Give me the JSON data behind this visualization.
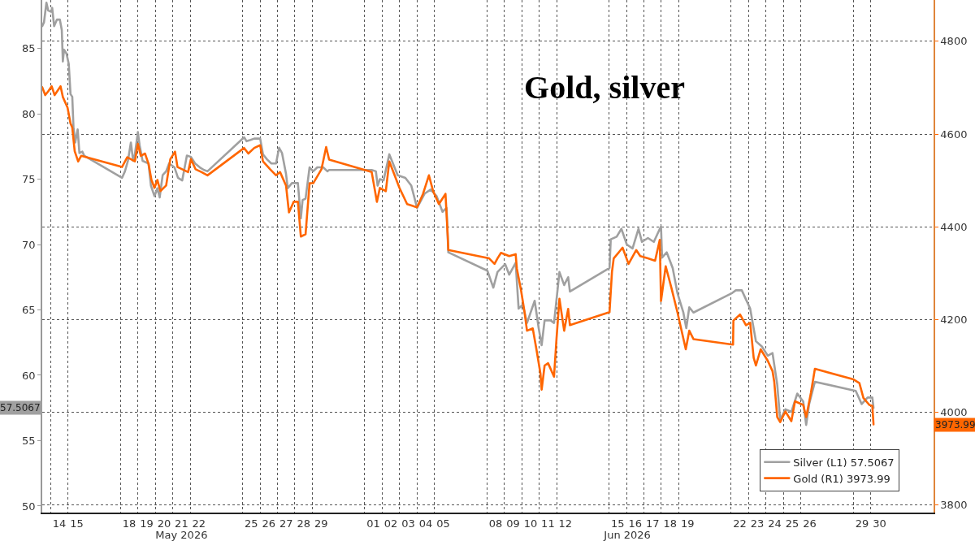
{
  "chart_data": {
    "type": "line",
    "title": "Gold, silver",
    "xlim": [
      "2026-05-13T12:29",
      "2026-07-03T14:24"
    ],
    "xticks": [
      {
        "value": "2026-05-14T12:00",
        "label": "14"
      },
      {
        "value": "2026-05-15T12:00",
        "label": "15"
      },
      {
        "value": "2026-05-18T12:00",
        "label": "18"
      },
      {
        "value": "2026-05-19T12:00",
        "label": "19"
      },
      {
        "value": "2026-05-20T12:00",
        "label": "20"
      },
      {
        "value": "2026-05-21T12:00",
        "label": "21"
      },
      {
        "value": "2026-05-22T12:00",
        "label": "22"
      },
      {
        "value": "2026-05-25T12:00",
        "label": "25"
      },
      {
        "value": "2026-05-26T12:00",
        "label": "26"
      },
      {
        "value": "2026-05-27T12:00",
        "label": "27"
      },
      {
        "value": "2026-05-28T12:00",
        "label": "28"
      },
      {
        "value": "2026-05-29T12:00",
        "label": "29"
      },
      {
        "value": "2026-06-01T12:00",
        "label": "01"
      },
      {
        "value": "2026-06-02T12:00",
        "label": "02"
      },
      {
        "value": "2026-06-03T12:00",
        "label": "03"
      },
      {
        "value": "2026-06-04T12:00",
        "label": "04"
      },
      {
        "value": "2026-06-05T12:00",
        "label": "05"
      },
      {
        "value": "2026-06-08T12:00",
        "label": "08"
      },
      {
        "value": "2026-06-09T12:00",
        "label": "09"
      },
      {
        "value": "2026-06-10T12:00",
        "label": "10"
      },
      {
        "value": "2026-06-11T12:00",
        "label": "11"
      },
      {
        "value": "2026-06-12T12:00",
        "label": "12"
      },
      {
        "value": "2026-06-15T12:00",
        "label": "15"
      },
      {
        "value": "2026-06-16T12:00",
        "label": "16"
      },
      {
        "value": "2026-06-17T12:00",
        "label": "17"
      },
      {
        "value": "2026-06-18T12:00",
        "label": "18"
      },
      {
        "value": "2026-06-19T12:00",
        "label": "19"
      },
      {
        "value": "2026-06-22T12:00",
        "label": "22"
      },
      {
        "value": "2026-06-23T12:00",
        "label": "23"
      },
      {
        "value": "2026-06-24T12:00",
        "label": "24"
      },
      {
        "value": "2026-06-25T12:00",
        "label": "25"
      },
      {
        "value": "2026-06-26T12:00",
        "label": "26"
      },
      {
        "value": "2026-06-29T12:00",
        "label": "29"
      },
      {
        "value": "2026-06-30T12:00",
        "label": "30"
      }
    ],
    "x2lim": [
      "2026-05-13T12:29",
      "2026-07-03T14:24"
    ],
    "x2ticks": [
      {
        "value": "2026-05-21T12:00",
        "label": "May 2026"
      },
      {
        "value": "2026-06-16T01:12",
        "label": "Jun 2026"
      }
    ],
    "ylim": [
      49.5,
      88.7
    ],
    "yticks": [
      50,
      55,
      60,
      65,
      70,
      75,
      80,
      85
    ],
    "y2lim": [
      3784,
      4889
    ],
    "y2ticks": [
      3800,
      4000,
      4200,
      4400,
      4600,
      4800
    ],
    "grid": true,
    "legend": "bottom right",
    "line_style": "solid",
    "annotations": [
      "57.5067",
      "3973.99"
    ],
    "series": [
      {
        "name": "Silver (L1) 57.5067",
        "color": "#a0a0a0",
        "axis": "y",
        "x": [
          "2026-05-13T12:29",
          "2026-05-13T14:53",
          "2026-05-13T18:14",
          "2026-05-13T20:38",
          "2026-05-14T00:43",
          "2026-05-14T02:10",
          "2026-05-14T04:48",
          "2026-05-14T08:38",
          "2026-05-14T12:43",
          "2026-05-14T15:22",
          "2026-05-14T16:48",
          "2026-05-14T18:29",
          "2026-05-14T21:50",
          "2026-05-15T00:58",
          "2026-05-15T03:22",
          "2026-05-15T05:46",
          "2026-05-15T07:26",
          "2026-05-15T09:50",
          "2026-05-15T13:12",
          "2026-05-15T15:36",
          "2026-05-15T19:41",
          "2026-05-15T22:05",
          "2026-05-18T02:10",
          "2026-05-18T06:14",
          "2026-05-18T10:19",
          "2026-05-18T14:24",
          "2026-05-18T17:31",
          "2026-05-18T19:55",
          "2026-05-19T00:00",
          "2026-05-19T02:24",
          "2026-05-19T06:29",
          "2026-05-19T14:38",
          "2026-05-19T18:00",
          "2026-05-19T22:48",
          "2026-05-20T02:53",
          "2026-05-20T06:00",
          "2026-05-20T10:05",
          "2026-05-20T14:53",
          "2026-05-20T18:58",
          "2026-05-21T02:24",
          "2026-05-21T07:12",
          "2026-05-21T12:58",
          "2026-05-21T19:26",
          "2026-05-22T00:58",
          "2026-05-22T06:43",
          "2026-05-22T13:12",
          "2026-05-22T18:58",
          "2026-05-22T23:46",
          "2026-05-25T02:10",
          "2026-05-25T05:31",
          "2026-05-25T11:02",
          "2026-05-25T16:05",
          "2026-05-26T00:14",
          "2026-05-26T04:05",
          "2026-05-26T09:50",
          "2026-05-26T15:36",
          "2026-05-26T22:05",
          "2026-05-27T02:10",
          "2026-05-27T06:14",
          "2026-05-27T11:46",
          "2026-05-27T14:10",
          "2026-05-27T19:55",
          "2026-05-28T04:05",
          "2026-05-28T08:10",
          "2026-05-28T10:34",
          "2026-05-28T14:38",
          "2026-05-28T20:10",
          "2026-05-29T01:12",
          "2026-05-29T06:43",
          "2026-05-29T14:53",
          "2026-05-29T20:38",
          "2026-05-29T23:02",
          "2026-06-01T09:36",
          "2026-06-01T15:22",
          "2026-06-01T17:46",
          "2026-06-01T20:53",
          "2026-06-02T01:55",
          "2026-06-02T09:50",
          "2026-06-02T21:22",
          "2026-06-03T07:55",
          "2026-06-03T16:05",
          "2026-06-04T00:00",
          "2026-06-04T10:34",
          "2026-06-04T18:43",
          "2026-06-05T02:53",
          "2026-06-05T11:02",
          "2026-06-05T16:34",
          "2026-06-05T18:58",
          "2026-06-08T00:43",
          "2026-06-08T08:53",
          "2026-06-08T14:38",
          "2026-06-09T01:12",
          "2026-06-09T06:43",
          "2026-06-09T15:36",
          "2026-06-09T19:41",
          "2026-06-10T01:26",
          "2026-06-10T07:12",
          "2026-06-10T17:46",
          "2026-06-10T23:17",
          "2026-06-11T03:22",
          "2026-06-11T07:26",
          "2026-06-11T15:36",
          "2026-06-11T20:24",
          "2026-06-12T03:50",
          "2026-06-12T10:19",
          "2026-06-12T15:50",
          "2026-06-12T18:14",
          "2026-06-15T00:43",
          "2026-06-15T02:24",
          "2026-06-15T10:34",
          "2026-06-15T17:02",
          "2026-06-16T00:29",
          "2026-06-16T08:24",
          "2026-06-16T16:34",
          "2026-06-16T21:22",
          "2026-06-17T05:31",
          "2026-06-17T13:41",
          "2026-06-17T23:31",
          "2026-06-18T00:58",
          "2026-06-18T07:26",
          "2026-06-18T15:36",
          "2026-06-18T22:05",
          "2026-06-19T06:14",
          "2026-06-19T10:19",
          "2026-06-19T14:24",
          "2026-06-19T20:10",
          "2026-06-22T01:41",
          "2026-06-22T06:29",
          "2026-06-22T14:38",
          "2026-06-23T02:10",
          "2026-06-23T10:05",
          "2026-06-23T18:14",
          "2026-06-24T02:24",
          "2026-06-24T08:53",
          "2026-06-24T15:22",
          "2026-06-24T19:26",
          "2026-06-25T02:38",
          "2026-06-25T10:48",
          "2026-06-25T18:58",
          "2026-06-26T03:07",
          "2026-06-26T07:12",
          "2026-06-26T11:17",
          "2026-06-26T19:12",
          "2026-06-29T03:22",
          "2026-06-29T11:31",
          "2026-06-29T19:41",
          "2026-06-30T02:10",
          "2026-06-30T03:50"
        ],
        "values": [
          86.7,
          87.0,
          88.5,
          87.9,
          87.8,
          88.1,
          86.7,
          87.2,
          87.2,
          86.4,
          84.0,
          84.9,
          84.6,
          83.8,
          81.5,
          81.3,
          79.0,
          77.8,
          78.8,
          77.0,
          77.1,
          76.8,
          75.1,
          75.6,
          76.4,
          77.8,
          76.4,
          76.9,
          78.6,
          77.6,
          76.4,
          76.2,
          74.5,
          73.7,
          74.3,
          73.6,
          75.3,
          75.6,
          76.2,
          75.9,
          75.1,
          74.9,
          76.8,
          76.7,
          76.2,
          75.9,
          75.7,
          75.6,
          78.2,
          77.9,
          78.0,
          78.1,
          78.1,
          76.9,
          76.5,
          76.2,
          76.2,
          77.4,
          77.0,
          75.4,
          74.3,
          74.7,
          74.7,
          72.0,
          73.4,
          73.5,
          75.9,
          75.6,
          75.9,
          75.9,
          75.6,
          75.7,
          75.7,
          75.6,
          74.5,
          75.0,
          74.9,
          76.9,
          75.3,
          75.1,
          74.5,
          72.8,
          73.9,
          74.2,
          73.7,
          72.5,
          72.8,
          69.4,
          68.0,
          66.7,
          67.9,
          68.5,
          67.7,
          68.6,
          65.1,
          65.4,
          64.0,
          65.7,
          63.6,
          62.3,
          64.2,
          64.2,
          64.0,
          67.9,
          66.9,
          67.5,
          66.4,
          68.2,
          70.4,
          70.6,
          71.2,
          70.0,
          69.7,
          71.2,
          70.2,
          70.5,
          70.2,
          71.4,
          69.0,
          69.4,
          68.2,
          66.3,
          64.8,
          63.6,
          65.2,
          64.8,
          66.3,
          66.5,
          66.5,
          65.1,
          62.6,
          62.2,
          61.5,
          61.7,
          59.3,
          56.6,
          57.4,
          57.2,
          58.6,
          58.0,
          56.2,
          57.8,
          59.5,
          58.8,
          57.8,
          58.3,
          58.3,
          57.5067
        ]
      },
      {
        "name": "Gold (R1) 3973.99",
        "color": "#ff6600",
        "axis": "y2",
        "x": [
          "2026-05-13T12:29",
          "2026-05-13T16:34",
          "2026-05-13T20:38",
          "2026-05-14T01:26",
          "2026-05-14T05:31",
          "2026-05-14T13:41",
          "2026-05-14T16:48",
          "2026-05-14T23:17",
          "2026-05-15T03:22",
          "2026-05-15T05:46",
          "2026-05-15T09:07",
          "2026-05-15T13:55",
          "2026-05-15T18:00",
          "2026-05-18T02:10",
          "2026-05-18T09:22",
          "2026-05-18T19:55",
          "2026-05-19T00:00",
          "2026-05-19T04:05",
          "2026-05-19T09:50",
          "2026-05-19T14:38",
          "2026-05-19T18:43",
          "2026-05-19T22:48",
          "2026-05-20T02:53",
          "2026-05-20T06:58",
          "2026-05-20T14:53",
          "2026-05-20T20:38",
          "2026-05-21T03:07",
          "2026-05-21T06:29",
          "2026-05-21T12:58",
          "2026-05-21T21:07",
          "2026-05-22T00:58",
          "2026-05-22T07:26",
          "2026-05-22T15:36",
          "2026-05-22T23:46",
          "2026-05-25T02:10",
          "2026-05-25T07:55",
          "2026-05-25T16:05",
          "2026-05-26T00:14",
          "2026-05-26T04:05",
          "2026-05-26T13:55",
          "2026-05-26T22:05",
          "2026-05-27T03:36",
          "2026-05-27T11:46",
          "2026-05-27T15:50",
          "2026-05-27T22:19",
          "2026-05-28T04:05",
          "2026-05-28T08:10",
          "2026-05-28T14:38",
          "2026-05-28T20:10",
          "2026-05-29T01:12",
          "2026-05-29T12:29",
          "2026-05-29T18:58",
          "2026-05-29T23:02",
          "2026-06-01T09:36",
          "2026-06-01T16:48",
          "2026-06-01T20:53",
          "2026-06-02T05:02",
          "2026-06-02T09:50",
          "2026-06-02T23:46",
          "2026-06-03T10:19",
          "2026-06-04T00:00",
          "2026-06-04T08:10",
          "2026-06-04T16:19",
          "2026-06-04T22:05",
          "2026-06-05T06:00",
          "2026-06-05T15:07",
          "2026-06-05T18:14",
          "2026-06-05T18:58",
          "2026-06-08T03:07",
          "2026-06-08T10:34",
          "2026-06-08T14:38",
          "2026-06-08T19:26",
          "2026-06-09T06:43",
          "2026-06-09T15:36",
          "2026-06-09T17:17",
          "2026-06-09T23:02",
          "2026-06-10T03:50",
          "2026-06-10T07:12",
          "2026-06-10T15:07",
          "2026-06-10T20:10",
          "2026-06-11T01:41",
          "2026-06-11T03:22",
          "2026-06-11T07:26",
          "2026-06-11T12:14",
          "2026-06-11T20:24",
          "2026-06-11T23:46",
          "2026-06-12T03:50",
          "2026-06-12T10:19",
          "2026-06-12T15:50",
          "2026-06-12T18:14",
          "2026-06-15T00:43",
          "2026-06-15T04:05",
          "2026-06-15T06:29",
          "2026-06-15T18:43",
          "2026-06-16T02:53",
          "2026-06-16T13:26",
          "2026-06-16T18:58",
          "2026-06-17T05:31",
          "2026-06-17T15:22",
          "2026-06-17T21:50",
          "2026-06-17T23:31",
          "2026-06-18T06:00",
          "2026-06-18T13:55",
          "2026-06-18T22:05",
          "2026-06-19T09:36",
          "2026-06-19T14:24",
          "2026-06-19T20:10",
          "2026-06-22T02:38",
          "2026-06-22T03:07",
          "2026-06-22T12:14",
          "2026-06-22T20:24",
          "2026-06-23T02:10",
          "2026-06-23T06:58",
          "2026-06-23T10:05",
          "2026-06-23T16:34",
          "2026-06-24T02:24",
          "2026-06-24T08:53",
          "2026-06-24T11:17",
          "2026-06-24T15:22",
          "2026-06-24T19:26",
          "2026-06-25T02:38",
          "2026-06-25T10:48",
          "2026-06-25T15:50",
          "2026-06-26T03:07",
          "2026-06-26T07:12",
          "2026-06-26T13:41",
          "2026-06-26T19:12",
          "2026-06-29T00:14",
          "2026-06-29T08:24",
          "2026-06-29T13:55",
          "2026-06-29T22:05",
          "2026-06-30T02:10",
          "2026-06-30T03:50"
        ],
        "values": [
          4701,
          4684,
          4692,
          4703,
          4684,
          4703,
          4680,
          4657,
          4623,
          4614,
          4563,
          4541,
          4553,
          4529,
          4550,
          4541,
          4579,
          4553,
          4558,
          4536,
          4501,
          4484,
          4501,
          4477,
          4489,
          4546,
          4562,
          4529,
          4524,
          4518,
          4546,
          4524,
          4518,
          4511,
          4570,
          4558,
          4570,
          4576,
          4541,
          4524,
          4511,
          4518,
          4489,
          4431,
          4454,
          4454,
          4379,
          4384,
          4494,
          4494,
          4524,
          4572,
          4545,
          4518,
          4454,
          4484,
          4477,
          4541,
          4484,
          4449,
          4442,
          4471,
          4511,
          4477,
          4449,
          4471,
          4379,
          4350,
          4332,
          4320,
          4332,
          4344,
          4337,
          4341,
          4310,
          4263,
          4216,
          4176,
          4181,
          4136,
          4084,
          4049,
          4101,
          4106,
          4077,
          4158,
          4245,
          4176,
          4223,
          4188,
          4216,
          4303,
          4332,
          4355,
          4320,
          4350,
          4337,
          4332,
          4327,
          4372,
          4240,
          4315,
          4268,
          4216,
          4136,
          4176,
          4158,
          4146,
          4198,
          4211,
          4188,
          4193,
          4118,
          4101,
          4136,
          4111,
          4089,
          4066,
          3990,
          3979,
          4002,
          3981,
          4024,
          4016,
          3990,
          4042,
          4094,
          4071,
          4063,
          4031,
          4016,
          4014,
          3973.99
        ]
      }
    ]
  }
}
